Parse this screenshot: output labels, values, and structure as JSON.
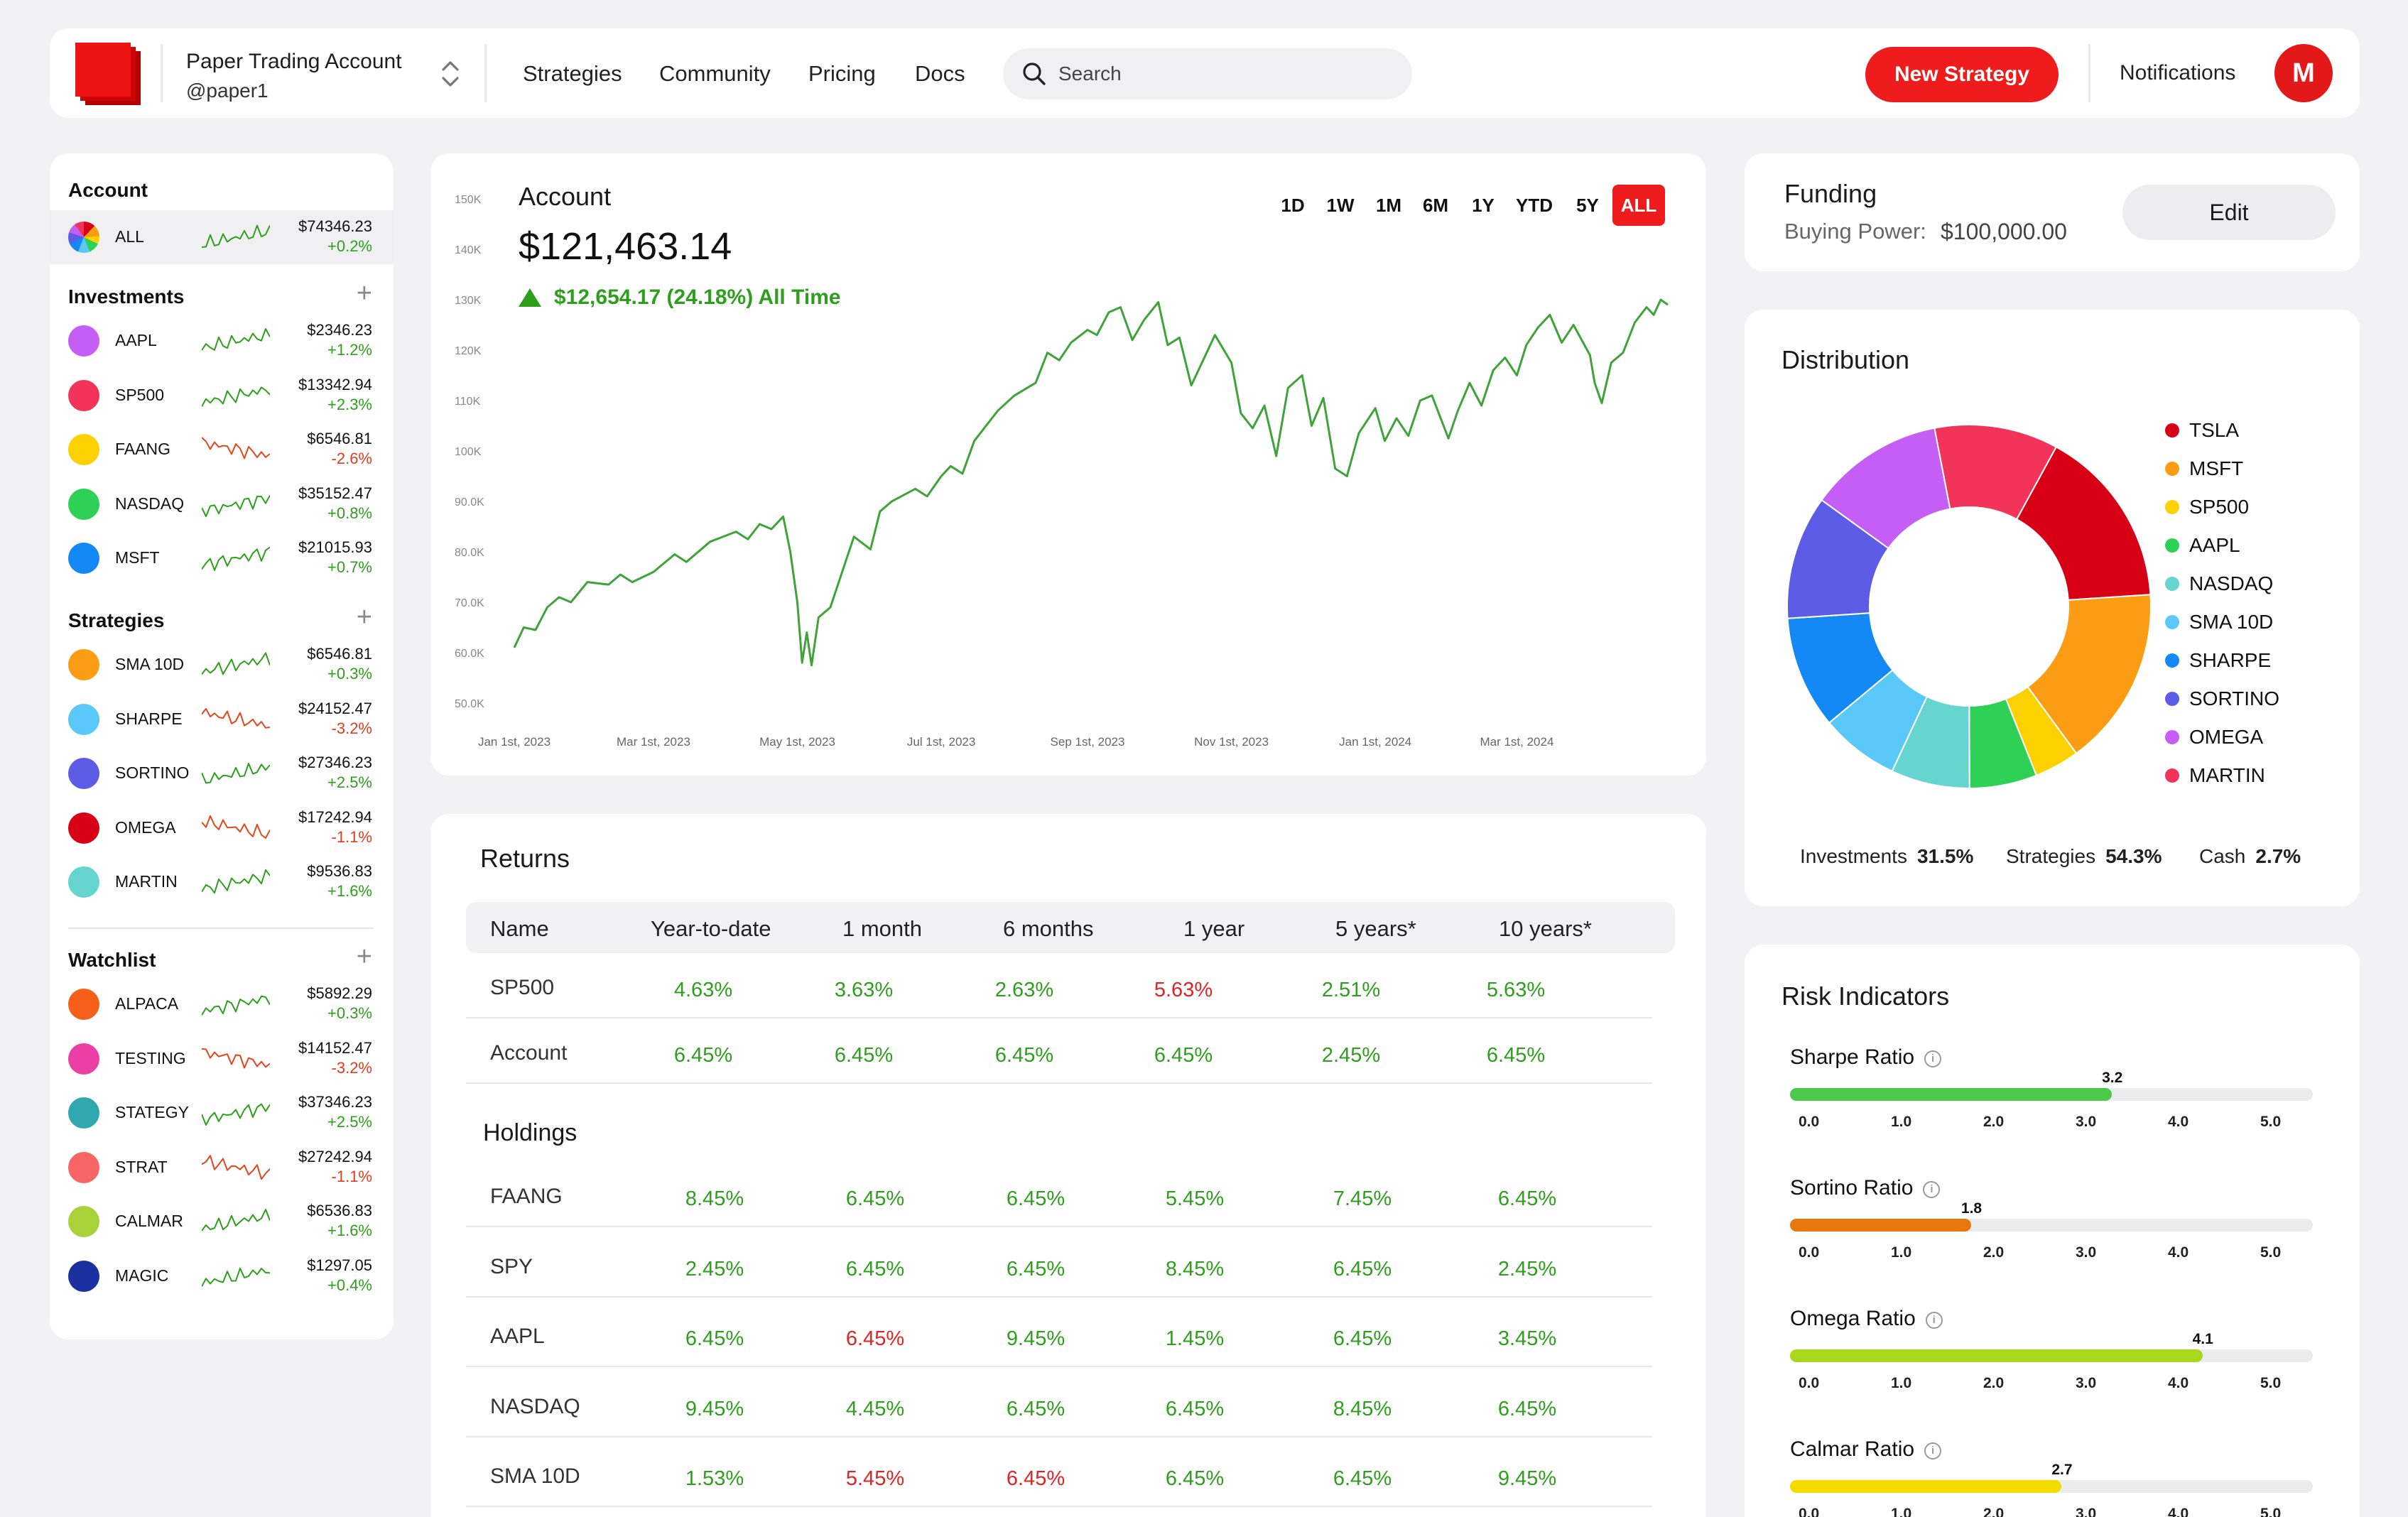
{
  "topnav": {
    "account_name": "Paper Trading Account",
    "account_handle": "@paper1",
    "links": [
      "Strategies",
      "Community",
      "Pricing",
      "Docs"
    ],
    "search_placeholder": "Search",
    "new_strategy_label": "New Strategy",
    "notifications_label": "Notifications",
    "avatar_initial": "M"
  },
  "sidebar": {
    "account_title": "Account",
    "all_row": {
      "name": "ALL",
      "value": "$74346.23",
      "change": "+0.2%"
    },
    "investments_title": "Investments",
    "investments": [
      {
        "name": "AAPL",
        "value": "$2346.23",
        "change": "+1.2%",
        "color": "#c45ef5",
        "trend": "up"
      },
      {
        "name": "SP500",
        "value": "$13342.94",
        "change": "+2.3%",
        "color": "#f2335a",
        "trend": "up"
      },
      {
        "name": "FAANG",
        "value": "$6546.81",
        "change": "-2.6%",
        "color": "#fdd000",
        "trend": "down"
      },
      {
        "name": "NASDAQ",
        "value": "$35152.47",
        "change": "+0.8%",
        "color": "#2ed156",
        "trend": "up"
      },
      {
        "name": "MSFT",
        "value": "$21015.93",
        "change": "+0.7%",
        "color": "#1488f5",
        "trend": "up"
      }
    ],
    "strategies_title": "Strategies",
    "strategies": [
      {
        "name": "SMA 10D",
        "value": "$6546.81",
        "change": "+0.3%",
        "color": "#fb9d14",
        "trend": "up"
      },
      {
        "name": "SHARPE",
        "value": "$24152.47",
        "change": "-3.2%",
        "color": "#5ac8f8",
        "trend": "down"
      },
      {
        "name": "SORTINO",
        "value": "$27346.23",
        "change": "+2.5%",
        "color": "#5d5ce6",
        "trend": "up"
      },
      {
        "name": "OMEGA",
        "value": "$17242.94",
        "change": "-1.1%",
        "color": "#d70015",
        "trend": "down"
      },
      {
        "name": "MARTIN",
        "value": "$9536.83",
        "change": "+1.6%",
        "color": "#66d4cf",
        "trend": "up"
      }
    ],
    "watchlist_title": "Watchlist",
    "watchlist": [
      {
        "name": "ALPACA",
        "value": "$5892.29",
        "change": "+0.3%",
        "color": "#f4601a",
        "trend": "up"
      },
      {
        "name": "TESTING",
        "value": "$14152.47",
        "change": "-3.2%",
        "color": "#ec3fa5",
        "trend": "down"
      },
      {
        "name": "STATEGY",
        "value": "$37346.23",
        "change": "+2.5%",
        "color": "#31a8b0",
        "trend": "up"
      },
      {
        "name": "STRAT",
        "value": "$27242.94",
        "change": "-1.1%",
        "color": "#f86565",
        "trend": "down"
      },
      {
        "name": "CALMAR",
        "value": "$6536.83",
        "change": "+1.6%",
        "color": "#a8d237",
        "trend": "up"
      },
      {
        "name": "MAGIC",
        "value": "$1297.05",
        "change": "+0.4%",
        "color": "#1a2fa0",
        "trend": "up"
      }
    ]
  },
  "account": {
    "title": "Account",
    "value": "$121,463.14",
    "change": "$12,654.17 (24.18%) All Time",
    "ranges": [
      "1D",
      "1W",
      "1M",
      "6M",
      "1Y",
      "YTD",
      "5Y",
      "ALL"
    ],
    "active_range": "ALL"
  },
  "chart_data": {
    "type": "line",
    "x_tick_labels": [
      "Jan 1st, 2023",
      "Mar 1st, 2023",
      "May 1st, 2023",
      "Jul 1st, 2023",
      "Sep 1st, 2023",
      "Nov 1st, 2023",
      "Jan 1st, 2024",
      "Mar 1st, 2024"
    ],
    "y_tick_labels": [
      "150K",
      "140K",
      "130K",
      "120K",
      "110K",
      "100K",
      "90.0K",
      "80.0K",
      "70.0K",
      "60.0K",
      "50.0K"
    ],
    "ylim": [
      50000,
      150000
    ],
    "series": [
      {
        "color": "#3fa33a",
        "points_xdate_yvalue": [
          [
            "2023-01-01",
            61000
          ],
          [
            "2023-01-05",
            65000
          ],
          [
            "2023-01-10",
            64500
          ],
          [
            "2023-01-15",
            69000
          ],
          [
            "2023-01-20",
            71000
          ],
          [
            "2023-01-25",
            70000
          ],
          [
            "2023-02-01",
            74000
          ],
          [
            "2023-02-10",
            73500
          ],
          [
            "2023-02-15",
            75500
          ],
          [
            "2023-02-20",
            74000
          ],
          [
            "2023-03-01",
            76000
          ],
          [
            "2023-03-10",
            79500
          ],
          [
            "2023-03-15",
            78000
          ],
          [
            "2023-03-25",
            82000
          ],
          [
            "2023-04-05",
            84000
          ],
          [
            "2023-04-10",
            82500
          ],
          [
            "2023-04-15",
            85500
          ],
          [
            "2023-04-20",
            84500
          ],
          [
            "2023-04-25",
            87000
          ],
          [
            "2023-04-28",
            80000
          ],
          [
            "2023-05-01",
            70000
          ],
          [
            "2023-05-03",
            58000
          ],
          [
            "2023-05-05",
            64000
          ],
          [
            "2023-05-07",
            57500
          ],
          [
            "2023-05-10",
            67000
          ],
          [
            "2023-05-15",
            69000
          ],
          [
            "2023-05-20",
            76000
          ],
          [
            "2023-05-25",
            83000
          ],
          [
            "2023-06-01",
            80500
          ],
          [
            "2023-06-05",
            88000
          ],
          [
            "2023-06-10",
            90000
          ],
          [
            "2023-06-20",
            92500
          ],
          [
            "2023-06-25",
            91000
          ],
          [
            "2023-07-01",
            95000
          ],
          [
            "2023-07-05",
            97000
          ],
          [
            "2023-07-10",
            95500
          ],
          [
            "2023-07-15",
            102000
          ],
          [
            "2023-07-25",
            108000
          ],
          [
            "2023-08-01",
            111000
          ],
          [
            "2023-08-10",
            113500
          ],
          [
            "2023-08-15",
            119500
          ],
          [
            "2023-08-20",
            118000
          ],
          [
            "2023-08-25",
            121500
          ],
          [
            "2023-09-01",
            124000
          ],
          [
            "2023-09-05",
            123000
          ],
          [
            "2023-09-10",
            127500
          ],
          [
            "2023-09-15",
            128500
          ],
          [
            "2023-09-20",
            122000
          ],
          [
            "2023-09-25",
            126000
          ],
          [
            "2023-10-01",
            129500
          ],
          [
            "2023-10-05",
            121000
          ],
          [
            "2023-10-10",
            122500
          ],
          [
            "2023-10-15",
            113000
          ],
          [
            "2023-10-20",
            118000
          ],
          [
            "2023-10-25",
            123000
          ],
          [
            "2023-11-01",
            117500
          ],
          [
            "2023-11-05",
            107500
          ],
          [
            "2023-11-10",
            104500
          ],
          [
            "2023-11-15",
            109000
          ],
          [
            "2023-11-20",
            99000
          ],
          [
            "2023-11-25",
            112500
          ],
          [
            "2023-12-01",
            115000
          ],
          [
            "2023-12-05",
            105000
          ],
          [
            "2023-12-10",
            110500
          ],
          [
            "2023-12-15",
            96500
          ],
          [
            "2023-12-20",
            95000
          ],
          [
            "2023-12-25",
            103500
          ],
          [
            "2024-01-01",
            108500
          ],
          [
            "2024-01-05",
            102000
          ],
          [
            "2024-01-10",
            106500
          ],
          [
            "2024-01-15",
            103000
          ],
          [
            "2024-01-20",
            110000
          ],
          [
            "2024-01-25",
            111000
          ],
          [
            "2024-02-01",
            102500
          ],
          [
            "2024-02-05",
            108000
          ],
          [
            "2024-02-10",
            113500
          ],
          [
            "2024-02-15",
            109000
          ],
          [
            "2024-02-20",
            116000
          ],
          [
            "2024-02-25",
            118500
          ],
          [
            "2024-03-01",
            115000
          ],
          [
            "2024-03-05",
            121000
          ],
          [
            "2024-03-10",
            124500
          ],
          [
            "2024-03-15",
            127000
          ],
          [
            "2024-03-20",
            121500
          ],
          [
            "2024-03-25",
            125000
          ],
          [
            "2024-04-01",
            119000
          ],
          [
            "2024-04-03",
            113500
          ],
          [
            "2024-04-06",
            109500
          ],
          [
            "2024-04-10",
            117500
          ],
          [
            "2024-04-15",
            119500
          ],
          [
            "2024-04-20",
            125500
          ],
          [
            "2024-04-25",
            128500
          ],
          [
            "2024-04-28",
            127000
          ],
          [
            "2024-05-01",
            130000
          ],
          [
            "2024-05-04",
            129000
          ]
        ]
      }
    ],
    "grid": false,
    "x_axis": "date"
  },
  "returns": {
    "title": "Returns",
    "columns": [
      "Name",
      "Year-to-date",
      "1 month",
      "6 months",
      "1 year",
      "5 years*",
      "10 years*"
    ],
    "rows": [
      {
        "name": "SP500",
        "values": [
          "4.63%",
          "3.63%",
          "2.63%",
          "5.63%",
          "2.51%",
          "5.63%"
        ],
        "neg": [
          false,
          false,
          false,
          true,
          false,
          false
        ]
      },
      {
        "name": "Account",
        "values": [
          "6.45%",
          "6.45%",
          "6.45%",
          "6.45%",
          "2.45%",
          "6.45%"
        ],
        "neg": [
          false,
          false,
          false,
          false,
          false,
          false
        ]
      }
    ],
    "holdings_title": "Holdings",
    "holdings": [
      {
        "name": "FAANG",
        "values": [
          "8.45%",
          "6.45%",
          "6.45%",
          "5.45%",
          "7.45%",
          "6.45%"
        ],
        "neg": [
          false,
          false,
          false,
          false,
          false,
          false
        ]
      },
      {
        "name": "SPY",
        "values": [
          "2.45%",
          "6.45%",
          "6.45%",
          "8.45%",
          "6.45%",
          "2.45%"
        ],
        "neg": [
          false,
          false,
          false,
          false,
          false,
          false
        ]
      },
      {
        "name": "AAPL",
        "values": [
          "6.45%",
          "6.45%",
          "9.45%",
          "1.45%",
          "6.45%",
          "3.45%"
        ],
        "neg": [
          false,
          true,
          false,
          false,
          false,
          false
        ]
      },
      {
        "name": "NASDAQ",
        "values": [
          "9.45%",
          "4.45%",
          "6.45%",
          "6.45%",
          "8.45%",
          "6.45%"
        ],
        "neg": [
          false,
          false,
          false,
          false,
          false,
          false
        ]
      },
      {
        "name": "SMA 10D",
        "values": [
          "1.53%",
          "5.45%",
          "6.45%",
          "6.45%",
          "6.45%",
          "9.45%"
        ],
        "neg": [
          false,
          true,
          true,
          false,
          false,
          false
        ]
      }
    ]
  },
  "funding": {
    "title": "Funding",
    "buying_power_label": "Buying Power:",
    "buying_power_value": "$100,000.00",
    "edit_label": "Edit"
  },
  "distribution": {
    "title": "Distribution",
    "slices": [
      {
        "name": "TSLA",
        "color": "#d70015",
        "value": 16
      },
      {
        "name": "MSFT",
        "color": "#fb9d14",
        "value": 16
      },
      {
        "name": "SP500",
        "color": "#fdd000",
        "value": 4
      },
      {
        "name": "AAPL",
        "color": "#2ed156",
        "value": 6
      },
      {
        "name": "NASDAQ",
        "color": "#66d4cf",
        "value": 7
      },
      {
        "name": "SMA 10D",
        "color": "#5ac8f8",
        "value": 7
      },
      {
        "name": "SHARPE",
        "color": "#1488f5",
        "value": 10
      },
      {
        "name": "SORTINO",
        "color": "#5d5ce6",
        "value": 11
      },
      {
        "name": "OMEGA",
        "color": "#c45ef5",
        "value": 12
      },
      {
        "name": "MARTIN",
        "color": "#f2335a",
        "value": 11
      }
    ],
    "allocation": [
      {
        "label": "Investments",
        "value": "31.5%"
      },
      {
        "label": "Strategies",
        "value": "54.3%"
      },
      {
        "label": "Cash",
        "value": "2.7%"
      }
    ]
  },
  "risk": {
    "title": "Risk Indicators",
    "info_glyph": "i",
    "ticks": [
      "0.0",
      "1.0",
      "2.0",
      "3.0",
      "4.0",
      "5.0"
    ],
    "scale_max": 5,
    "indicators": [
      {
        "name": "Sharpe Ratio",
        "value": 3.2,
        "value_label": "3.2",
        "color": "#4cc94b"
      },
      {
        "name": "Sortino Ratio",
        "value": 1.8,
        "value_label": "1.8",
        "color": "#e8780e"
      },
      {
        "name": "Omega Ratio",
        "value": 4.1,
        "value_label": "4.1",
        "color": "#a8d81c"
      },
      {
        "name": "Calmar Ratio",
        "value": 2.7,
        "value_label": "2.7",
        "color": "#f5dc00"
      }
    ]
  }
}
